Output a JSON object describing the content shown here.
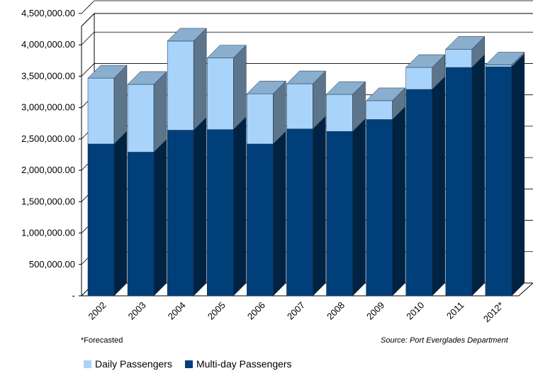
{
  "chart_data": {
    "type": "bar",
    "stacked": true,
    "three_d": true,
    "categories": [
      "2002",
      "2003",
      "2004",
      "2005",
      "2006",
      "2007",
      "2008",
      "2009",
      "2010",
      "2011",
      "2012*"
    ],
    "series": [
      {
        "name": "Multi-day Passengers",
        "color": "#003f7a",
        "values": [
          2420000,
          2290000,
          2640000,
          2650000,
          2420000,
          2660000,
          2620000,
          2810000,
          3290000,
          3640000,
          3650000
        ]
      },
      {
        "name": "Daily Passengers",
        "color": "#a8d4fb",
        "values": [
          1050000,
          1080000,
          1420000,
          1140000,
          800000,
          720000,
          590000,
          300000,
          350000,
          290000,
          30000
        ]
      }
    ],
    "y_ticks": [
      "-",
      "500,000.00",
      "1,000,000.00",
      "1,500,000.00",
      "2,000,000.00",
      "2,500,000.00",
      "3,000,000.00",
      "3,500,000.00",
      "4,000,000.00",
      "4,500,000.00"
    ],
    "ylim": [
      0,
      4500000
    ],
    "grid": true,
    "legend": "bottom-left",
    "notes": {
      "footnote": "*Forecasted",
      "source": "Source: Port Everglades Department"
    }
  }
}
